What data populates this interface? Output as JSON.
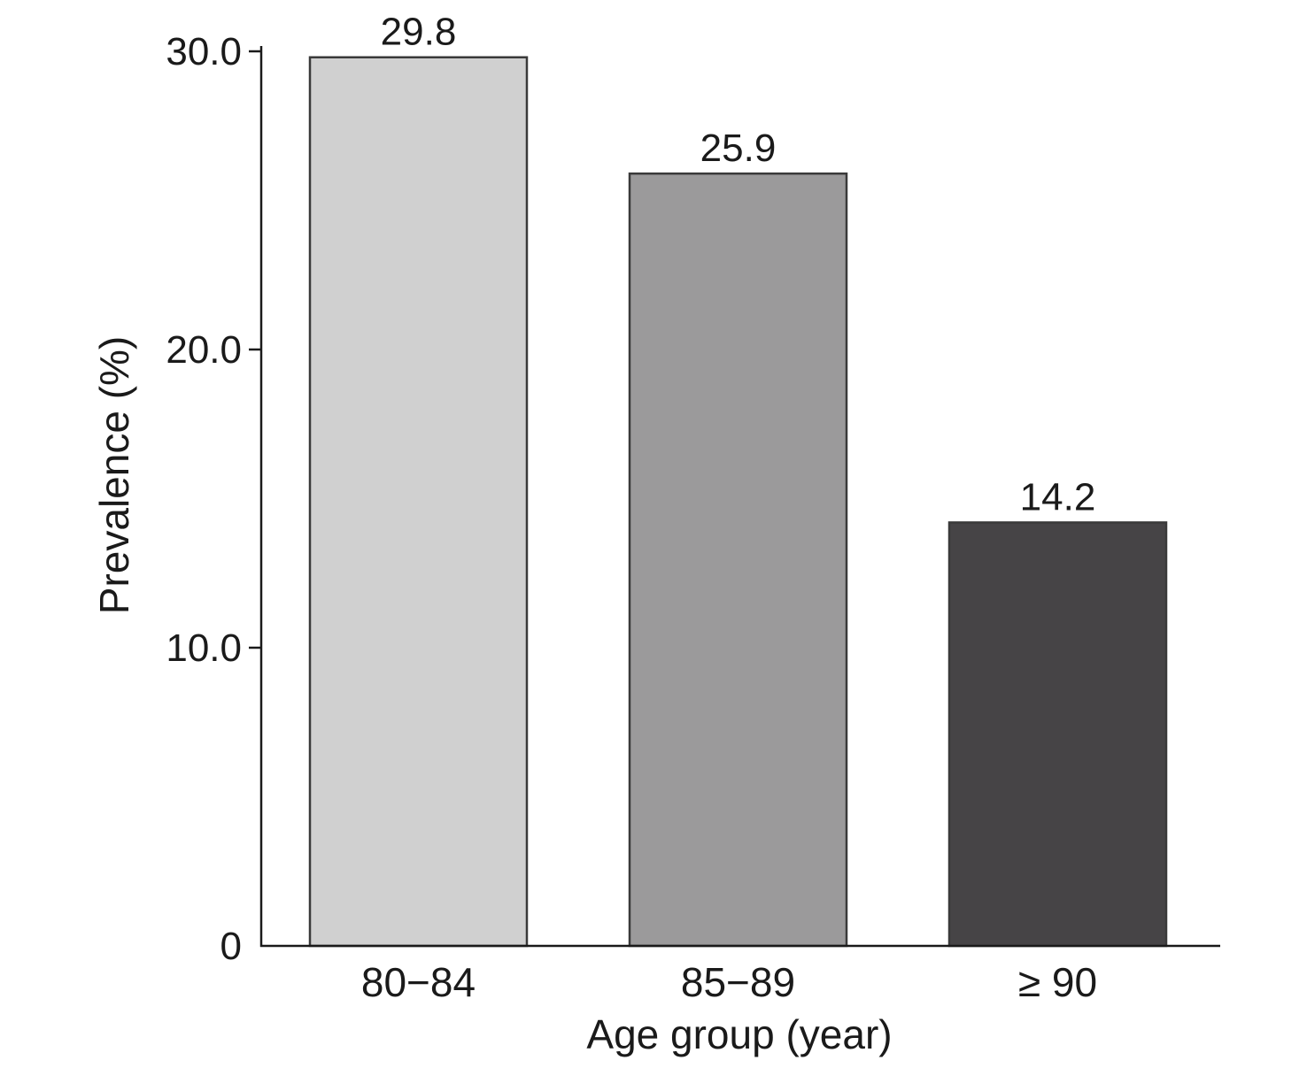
{
  "chart_data": {
    "type": "bar",
    "title": "",
    "xlabel": "Age group (year)",
    "ylabel": "Prevalence (%)",
    "ylim": [
      0,
      30
    ],
    "yticks": [
      {
        "value": 0,
        "label": "0"
      },
      {
        "value": 10,
        "label": "10.0"
      },
      {
        "value": 20,
        "label": "20.0"
      },
      {
        "value": 30,
        "label": "30.0"
      }
    ],
    "categories": [
      "80−84",
      "85−89",
      "≥ 90"
    ],
    "values": [
      29.8,
      25.9,
      14.2
    ],
    "value_labels": [
      "29.8",
      "25.9",
      "14.2"
    ],
    "bar_colors": [
      "#d0d0d0",
      "#9b9a9b",
      "#464446"
    ],
    "grid": false,
    "legend": "none"
  }
}
